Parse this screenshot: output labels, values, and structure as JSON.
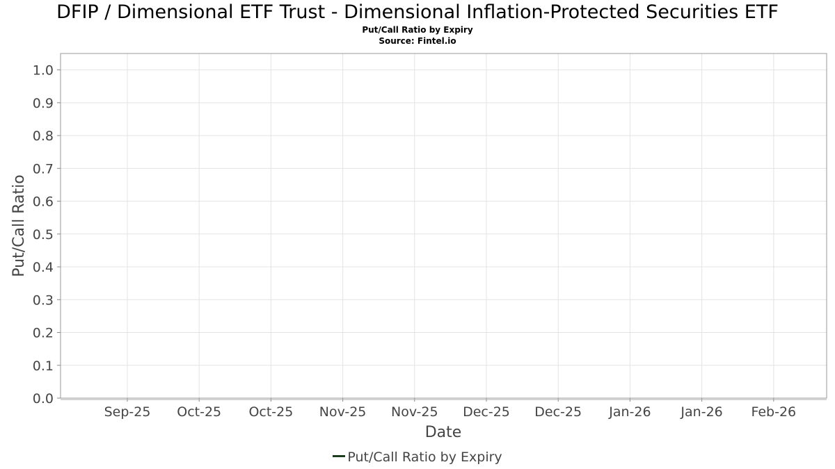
{
  "title": "DFIP / Dimensional ETF Trust - Dimensional Inflation-Protected Securities ETF",
  "subtitle": "Put/Call Ratio by Expiry",
  "source": "Source: Fintel.io",
  "chart_data": {
    "type": "line",
    "xlabel": "Date",
    "ylabel": "Put/Call Ratio",
    "ylim": [
      0.0,
      1.05
    ],
    "yticks": [
      "0.0",
      "0.1",
      "0.2",
      "0.3",
      "0.4",
      "0.5",
      "0.6",
      "0.7",
      "0.8",
      "0.9",
      "1.0"
    ],
    "x_tick_labels": [
      "Sep-25",
      "Oct-25",
      "Oct-25",
      "Nov-25",
      "Nov-25",
      "Dec-25",
      "Dec-25",
      "Jan-26",
      "Jan-26",
      "Feb-26"
    ],
    "grid": true,
    "legend_position": "bottom",
    "series": [
      {
        "name": "Put/Call Ratio by Expiry",
        "color": "#1b3d1b",
        "x": [],
        "values": []
      }
    ]
  }
}
